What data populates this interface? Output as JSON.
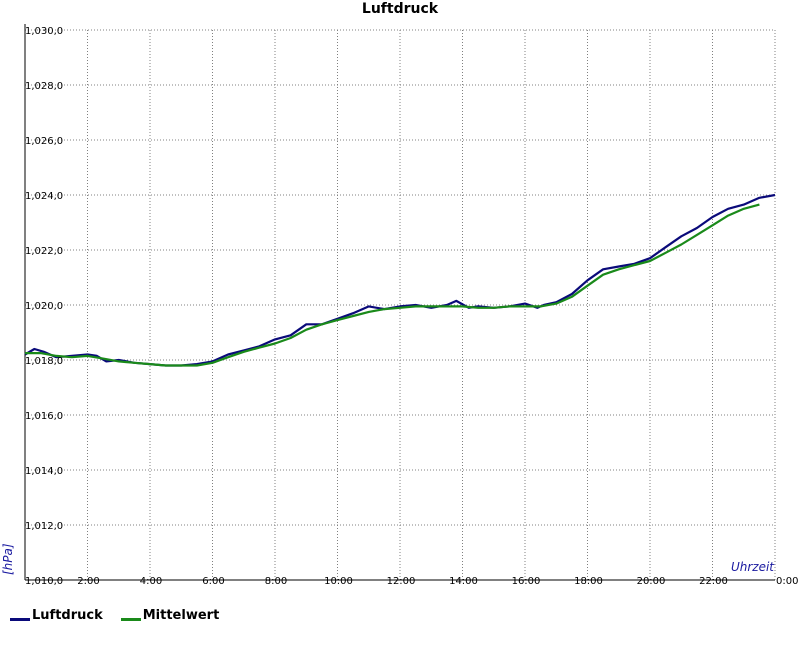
{
  "chart_data": {
    "type": "line",
    "title": "Luftdruck",
    "xlabel": "Uhrzeit",
    "ylabel": "[hPa]",
    "x_ticks": [
      "2:00",
      "4:00",
      "6:00",
      "8:00",
      "10:00",
      "12:00",
      "14:00",
      "16:00",
      "18:00",
      "20:00",
      "22:00",
      "0:00"
    ],
    "x_range_hours": [
      0,
      24
    ],
    "y_ticks": [
      "1,010,0",
      "1,012,0",
      "1,014,0",
      "1,016,0",
      "1,018,0",
      "1,020,0",
      "1,022,0",
      "1,024,0",
      "1,026,0",
      "1,028,0",
      "1,030,0"
    ],
    "ylim": [
      1010,
      1030
    ],
    "grid": true,
    "legend_position": "bottom-left",
    "series": [
      {
        "name": "Luftdruck",
        "color": "#0a0a7a",
        "points": [
          [
            0,
            1018.2
          ],
          [
            0.3,
            1018.4
          ],
          [
            0.6,
            1018.3
          ],
          [
            1,
            1018.1
          ],
          [
            1.5,
            1018.15
          ],
          [
            2,
            1018.2
          ],
          [
            2.3,
            1018.15
          ],
          [
            2.6,
            1017.95
          ],
          [
            3,
            1018.0
          ],
          [
            3.5,
            1017.9
          ],
          [
            4,
            1017.85
          ],
          [
            4.5,
            1017.8
          ],
          [
            5,
            1017.8
          ],
          [
            5.5,
            1017.85
          ],
          [
            6,
            1017.95
          ],
          [
            6.5,
            1018.2
          ],
          [
            7,
            1018.35
          ],
          [
            7.5,
            1018.5
          ],
          [
            8,
            1018.75
          ],
          [
            8.5,
            1018.9
          ],
          [
            9,
            1019.3
          ],
          [
            9.5,
            1019.3
          ],
          [
            10,
            1019.5
          ],
          [
            10.5,
            1019.7
          ],
          [
            11,
            1019.95
          ],
          [
            11.5,
            1019.85
          ],
          [
            12,
            1019.95
          ],
          [
            12.5,
            1020.0
          ],
          [
            13,
            1019.9
          ],
          [
            13.5,
            1020.0
          ],
          [
            13.8,
            1020.15
          ],
          [
            14.2,
            1019.9
          ],
          [
            14.5,
            1019.95
          ],
          [
            15,
            1019.9
          ],
          [
            15.5,
            1019.95
          ],
          [
            16,
            1020.05
          ],
          [
            16.4,
            1019.9
          ],
          [
            16.6,
            1020.0
          ],
          [
            17,
            1020.1
          ],
          [
            17.5,
            1020.4
          ],
          [
            18,
            1020.9
          ],
          [
            18.5,
            1021.3
          ],
          [
            19,
            1021.4
          ],
          [
            19.5,
            1021.5
          ],
          [
            20,
            1021.7
          ],
          [
            20.5,
            1022.1
          ],
          [
            21,
            1022.5
          ],
          [
            21.5,
            1022.8
          ],
          [
            22,
            1023.2
          ],
          [
            22.5,
            1023.5
          ],
          [
            23,
            1023.65
          ],
          [
            23.5,
            1023.9
          ],
          [
            24,
            1024.0
          ]
        ]
      },
      {
        "name": "Mittelwert",
        "color": "#1a8a1a",
        "points": [
          [
            0,
            1018.25
          ],
          [
            0.5,
            1018.25
          ],
          [
            1,
            1018.15
          ],
          [
            1.5,
            1018.1
          ],
          [
            2,
            1018.15
          ],
          [
            2.5,
            1018.05
          ],
          [
            3,
            1017.95
          ],
          [
            3.5,
            1017.9
          ],
          [
            4,
            1017.85
          ],
          [
            4.5,
            1017.8
          ],
          [
            5,
            1017.8
          ],
          [
            5.5,
            1017.8
          ],
          [
            6,
            1017.9
          ],
          [
            6.5,
            1018.1
          ],
          [
            7,
            1018.3
          ],
          [
            7.5,
            1018.45
          ],
          [
            8,
            1018.6
          ],
          [
            8.5,
            1018.8
          ],
          [
            9,
            1019.1
          ],
          [
            9.5,
            1019.3
          ],
          [
            10,
            1019.45
          ],
          [
            10.5,
            1019.6
          ],
          [
            11,
            1019.75
          ],
          [
            11.5,
            1019.85
          ],
          [
            12,
            1019.9
          ],
          [
            12.5,
            1019.95
          ],
          [
            13,
            1019.95
          ],
          [
            13.5,
            1019.95
          ],
          [
            14,
            1019.95
          ],
          [
            14.5,
            1019.9
          ],
          [
            15,
            1019.9
          ],
          [
            15.5,
            1019.95
          ],
          [
            16,
            1019.95
          ],
          [
            16.5,
            1019.95
          ],
          [
            17,
            1020.05
          ],
          [
            17.5,
            1020.3
          ],
          [
            18,
            1020.7
          ],
          [
            18.5,
            1021.1
          ],
          [
            19,
            1021.3
          ],
          [
            19.5,
            1021.45
          ],
          [
            20,
            1021.6
          ],
          [
            20.5,
            1021.9
          ],
          [
            21,
            1022.2
          ],
          [
            21.5,
            1022.55
          ],
          [
            22,
            1022.9
          ],
          [
            22.5,
            1023.25
          ],
          [
            23,
            1023.5
          ],
          [
            23.5,
            1023.65
          ]
        ]
      }
    ]
  }
}
